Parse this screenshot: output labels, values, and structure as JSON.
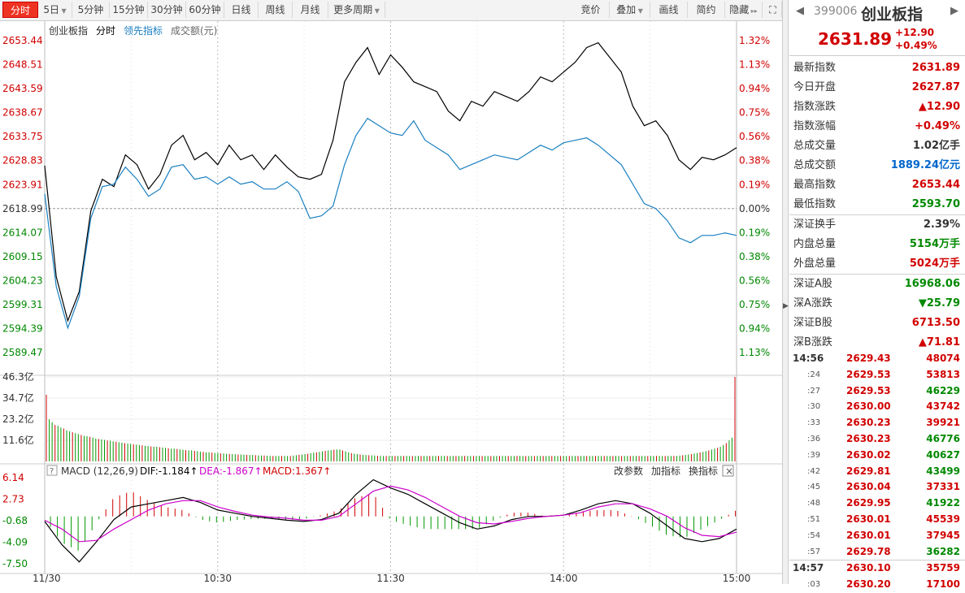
{
  "toolbar": {
    "tabs": [
      {
        "label": "分时",
        "active": true
      },
      {
        "label": "5日",
        "dropdown": true
      },
      {
        "label": "5分钟"
      },
      {
        "label": "15分钟"
      },
      {
        "label": "30分钟"
      },
      {
        "label": "60分钟"
      },
      {
        "label": "日线"
      },
      {
        "label": "周线"
      },
      {
        "label": "月线"
      },
      {
        "label": "更多周期",
        "dropdown": true
      }
    ],
    "right": [
      {
        "label": "竞价"
      },
      {
        "label": "叠加",
        "dropdown": true
      },
      {
        "label": "画线"
      },
      {
        "label": "简约"
      },
      {
        "label": "隐藏",
        "suffix": "▸▸"
      }
    ],
    "fullscreen_icon": "expand-icon"
  },
  "chart_data": {
    "type": "line",
    "title": "创业板指",
    "legend": [
      "创业板指",
      "分时",
      "领先指标",
      "成交额(元)"
    ],
    "legend_colors": [
      "#333333",
      "#000000",
      "#1a7fc0",
      "#666666"
    ],
    "prev_close": 2618.99,
    "price_axis": [
      "2653.44",
      "2648.51",
      "2643.59",
      "2638.67",
      "2633.75",
      "2628.83",
      "2623.91",
      "2618.99",
      "2614.07",
      "2609.15",
      "2604.23",
      "2599.31",
      "2594.39",
      "2589.47"
    ],
    "pct_axis": [
      "1.32%",
      "1.13%",
      "0.94%",
      "0.75%",
      "0.56%",
      "0.38%",
      "0.19%",
      "0.00%",
      "0.19%",
      "0.38%",
      "0.56%",
      "0.75%",
      "0.94%",
      "1.13%"
    ],
    "ylim": [
      2589.47,
      2653.44
    ],
    "time_labels": [
      "11/30",
      "10:30",
      "11:30",
      "14:00",
      "15:00"
    ],
    "series": [
      {
        "name": "分时",
        "color": "#000000",
        "x": [
          0,
          4,
          8,
          12,
          16,
          20,
          24,
          28,
          32,
          36,
          40,
          44,
          48,
          52,
          56,
          60,
          64,
          68,
          72,
          76,
          80,
          84,
          88,
          92,
          96,
          100,
          104,
          108,
          112,
          116,
          120,
          124,
          128,
          132,
          136,
          140,
          144,
          148,
          152,
          156,
          160,
          164,
          168,
          172,
          176,
          180,
          184,
          188,
          192,
          196,
          200,
          204,
          208,
          212,
          216,
          220,
          224,
          228,
          232,
          236,
          240
        ],
        "y": [
          2627.8,
          2605.0,
          2596.0,
          2602.0,
          2618.5,
          2625.0,
          2623.5,
          2630.0,
          2628.0,
          2623.0,
          2626.0,
          2632.0,
          2634.0,
          2629.0,
          2630.5,
          2628.0,
          2632.0,
          2629.0,
          2630.0,
          2627.0,
          2630.0,
          2627.5,
          2625.5,
          2625.0,
          2626.0,
          2633.0,
          2645.0,
          2649.0,
          2652.0,
          2646.5,
          2650.5,
          2648.0,
          2645.0,
          2644.0,
          2643.0,
          2639.0,
          2637.0,
          2641.0,
          2640.0,
          2643.0,
          2642.0,
          2641.0,
          2643.0,
          2646.0,
          2645.0,
          2647.0,
          2649.0,
          2652.0,
          2653.0,
          2650.0,
          2647.0,
          2640.0,
          2636.0,
          2637.0,
          2634.0,
          2629.0,
          2627.0,
          2629.5,
          2629.0,
          2630.0,
          2631.5
        ]
      },
      {
        "name": "领先指标",
        "color": "#1a7fc0",
        "x": [
          0,
          4,
          8,
          12,
          16,
          20,
          24,
          28,
          32,
          36,
          40,
          44,
          48,
          52,
          56,
          60,
          64,
          68,
          72,
          76,
          80,
          84,
          88,
          92,
          96,
          100,
          104,
          108,
          112,
          116,
          120,
          124,
          128,
          132,
          136,
          140,
          144,
          148,
          152,
          156,
          160,
          164,
          168,
          172,
          176,
          180,
          184,
          188,
          192,
          196,
          200,
          204,
          208,
          212,
          216,
          220,
          224,
          228,
          232,
          236,
          240
        ],
        "y": [
          2622.0,
          2603.0,
          2594.5,
          2601.0,
          2617.0,
          2623.5,
          2624.0,
          2627.5,
          2625.0,
          2621.5,
          2623.0,
          2627.5,
          2628.0,
          2625.0,
          2625.5,
          2624.0,
          2625.5,
          2624.0,
          2624.5,
          2623.0,
          2623.0,
          2624.5,
          2622.5,
          2617.0,
          2617.5,
          2619.5,
          2628.0,
          2634.0,
          2637.5,
          2636.0,
          2634.5,
          2634.0,
          2637.0,
          2633.0,
          2631.5,
          2630.0,
          2627.0,
          2628.0,
          2629.0,
          2630.0,
          2629.5,
          2629.0,
          2630.5,
          2632.0,
          2631.0,
          2632.5,
          2633.0,
          2633.5,
          2632.0,
          2630.0,
          2628.0,
          2624.0,
          2620.0,
          2619.0,
          2616.5,
          2613.0,
          2612.0,
          2613.5,
          2613.5,
          2614.0,
          2613.5
        ]
      }
    ],
    "volume": {
      "axis": [
        "46.3亿",
        "34.7亿",
        "23.2亿",
        "11.6亿"
      ],
      "max": 46.3,
      "values": [
        36.5,
        23.0,
        21.5,
        20.0,
        19.5,
        18.5,
        18.0,
        17.0,
        16.5,
        16.0,
        15.5,
        15.0,
        14.5,
        14.0,
        13.8,
        13.5,
        13.0,
        12.5,
        12.3,
        12.0,
        11.8,
        11.5,
        11.3,
        11.0,
        10.8,
        10.5,
        10.3,
        10.0,
        9.8,
        9.6,
        9.4,
        9.2,
        9.0,
        8.8,
        8.6,
        8.4,
        8.2,
        8.0,
        8.0,
        7.8,
        7.6,
        7.4,
        7.2,
        7.0,
        7.0,
        6.8,
        6.6,
        6.4,
        6.2,
        6.0,
        6.0,
        5.8,
        5.6,
        5.4,
        5.2,
        5.0,
        5.0,
        4.8,
        4.6,
        4.5,
        4.4,
        4.3,
        4.2,
        4.1,
        4.0,
        3.9,
        3.8,
        3.8,
        3.7,
        3.6,
        3.5,
        3.5,
        3.4,
        3.3,
        3.2,
        3.2,
        3.1,
        3.0,
        3.0,
        3.0,
        3.0,
        3.0,
        3.0,
        3.0,
        3.0,
        3.2,
        3.4,
        3.6,
        3.8,
        4.0,
        4.2,
        4.5,
        4.8,
        5.0,
        5.2,
        5.5,
        5.8,
        6.0,
        6.2,
        6.4,
        6.5,
        6.5,
        6.0,
        5.5,
        5.0,
        4.5,
        4.2,
        4.0,
        3.8,
        3.6,
        3.5,
        3.4,
        3.3,
        3.2,
        3.1,
        3.0,
        3.0,
        3.0,
        3.0,
        3.0,
        3.0,
        3.0,
        3.0,
        3.0,
        3.0,
        3.0,
        3.0,
        3.0,
        3.0,
        3.0,
        3.0,
        3.0,
        3.0,
        3.0,
        3.0,
        3.0,
        3.0,
        3.0,
        3.0,
        3.0,
        3.0,
        3.0,
        3.0,
        3.0,
        3.0,
        3.0,
        3.0,
        3.0,
        3.0,
        3.0,
        3.0,
        3.0,
        3.0,
        3.0,
        3.0,
        3.0,
        3.0,
        3.0,
        3.0,
        3.0,
        3.0,
        3.0,
        3.0,
        3.0,
        3.0,
        3.0,
        3.0,
        3.0,
        3.0,
        3.0,
        3.0,
        3.0,
        3.0,
        3.0,
        3.0,
        3.0,
        3.0,
        3.0,
        3.0,
        3.0,
        3.0,
        3.0,
        3.0,
        3.0,
        3.0,
        3.0,
        3.0,
        3.0,
        3.0,
        3.0,
        3.0,
        3.0,
        3.0,
        3.0,
        3.0,
        3.0,
        3.0,
        3.0,
        3.0,
        3.0,
        3.0,
        3.0,
        3.0,
        3.0,
        3.0,
        3.0,
        3.0,
        3.0,
        3.0,
        3.0,
        3.0,
        3.0,
        3.0,
        3.0,
        3.0,
        3.0,
        3.0,
        3.0,
        3.2,
        3.4,
        3.6,
        3.8,
        4.0,
        4.3,
        4.6,
        4.9,
        5.2,
        5.6,
        6.0,
        6.5,
        7.0,
        7.5,
        8.0,
        9.0,
        10.0,
        11.5,
        13.0,
        46.3
      ]
    },
    "macd": {
      "header": "MACD (12,26,9)",
      "dif_label": "DIF:-1.184↑",
      "dea_label": "DEA:-1.867↑",
      "macd_label": "MACD:1.367↑",
      "dif_color": "#000000",
      "dea_color": "#cc00cc",
      "axis": [
        "6.14",
        "2.73",
        "-0.68",
        "-4.09",
        "-7.50"
      ],
      "ylim": [
        -7.5,
        6.14
      ],
      "links": [
        "改参数",
        "加指标",
        "换指标"
      ],
      "x": [
        0,
        6,
        12,
        18,
        24,
        30,
        36,
        42,
        48,
        54,
        60,
        66,
        72,
        78,
        84,
        90,
        96,
        102,
        108,
        114,
        120,
        126,
        132,
        138,
        144,
        150,
        156,
        162,
        168,
        174,
        180,
        186,
        192,
        198,
        204,
        210,
        216,
        222,
        228,
        234,
        240
      ],
      "dif": [
        -0.8,
        -4.5,
        -7.2,
        -4.0,
        -0.5,
        1.5,
        2.0,
        2.5,
        3.0,
        2.2,
        1.0,
        0.5,
        0.0,
        -0.3,
        -0.6,
        -0.8,
        -0.5,
        0.5,
        3.5,
        5.8,
        4.5,
        3.5,
        2.0,
        0.5,
        -1.0,
        -2.0,
        -1.5,
        -0.5,
        0.0,
        0.0,
        0.2,
        1.0,
        2.0,
        2.5,
        2.0,
        0.5,
        -1.5,
        -3.5,
        -4.0,
        -3.5,
        -2.0
      ],
      "dea": [
        -0.6,
        -2.0,
        -4.0,
        -3.8,
        -2.0,
        -0.5,
        1.0,
        2.0,
        2.5,
        2.5,
        1.5,
        0.8,
        0.2,
        -0.1,
        -0.3,
        -0.6,
        -0.6,
        0.0,
        2.0,
        4.0,
        4.8,
        4.2,
        3.0,
        1.5,
        0.0,
        -1.0,
        -1.2,
        -0.8,
        -0.3,
        0.0,
        0.2,
        0.6,
        1.5,
        2.0,
        2.0,
        1.2,
        0.0,
        -1.8,
        -3.0,
        -3.2,
        -2.5
      ],
      "bars": [
        -0.4,
        -4.2,
        -5.5,
        -1.0,
        3.0,
        4.0,
        2.5,
        1.5,
        1.0,
        -0.5,
        -1.0,
        -0.6,
        -0.4,
        -0.4,
        -0.6,
        -0.4,
        0.2,
        1.0,
        3.0,
        3.6,
        -0.6,
        -1.4,
        -2.0,
        -2.0,
        -2.0,
        -2.0,
        -0.6,
        0.6,
        0.6,
        0.0,
        0.0,
        0.8,
        1.0,
        1.0,
        0.0,
        -1.4,
        -3.0,
        -3.4,
        -2.0,
        -0.6,
        1.0
      ]
    }
  },
  "sidebar": {
    "code": "399006",
    "name": "创业板指",
    "price": "2631.89",
    "change": "+12.90",
    "change_pct": "+0.49%",
    "stats": [
      {
        "label": "最新指数",
        "value": "2631.89",
        "color": "red"
      },
      {
        "label": "今日开盘",
        "value": "2627.87",
        "color": "red"
      },
      {
        "label": "指数涨跌",
        "value": "▲12.90",
        "color": "red"
      },
      {
        "label": "指数涨幅",
        "value": "+0.49%",
        "color": "red"
      },
      {
        "label": "总成交量",
        "value": "1.02亿手",
        "color": "dark"
      },
      {
        "label": "总成交额",
        "value": "1889.24亿元",
        "color": "blue"
      },
      {
        "label": "最高指数",
        "value": "2653.44",
        "color": "red"
      },
      {
        "label": "最低指数",
        "value": "2593.70",
        "color": "green"
      },
      {
        "label": "深证换手",
        "value": "2.39%",
        "color": "dark",
        "divider": true
      },
      {
        "label": "内盘总量",
        "value": "5154万手",
        "color": "green"
      },
      {
        "label": "外盘总量",
        "value": "5024万手",
        "color": "red"
      },
      {
        "label": "深证A股",
        "value": "16968.06",
        "color": "green",
        "divider": true
      },
      {
        "label": "深A涨跌",
        "value": "▼25.79",
        "color": "green"
      },
      {
        "label": "深证B股",
        "value": "6713.50",
        "color": "red"
      },
      {
        "label": "深B涨跌",
        "value": "▲71.81",
        "color": "red"
      }
    ],
    "ticks": [
      {
        "time": "14:56",
        "full": true,
        "price": "2629.43",
        "pc": "red",
        "vol": "48074",
        "vc": "red"
      },
      {
        "time": ":24",
        "price": "2629.53",
        "pc": "red",
        "vol": "53813",
        "vc": "red"
      },
      {
        "time": ":27",
        "price": "2629.53",
        "pc": "red",
        "vol": "46229",
        "vc": "green"
      },
      {
        "time": ":30",
        "price": "2630.00",
        "pc": "red",
        "vol": "43742",
        "vc": "red"
      },
      {
        "time": ":33",
        "price": "2630.23",
        "pc": "red",
        "vol": "39921",
        "vc": "red"
      },
      {
        "time": ":36",
        "price": "2630.23",
        "pc": "red",
        "vol": "46776",
        "vc": "green"
      },
      {
        "time": ":39",
        "price": "2630.02",
        "pc": "red",
        "vol": "40627",
        "vc": "green"
      },
      {
        "time": ":42",
        "price": "2629.81",
        "pc": "red",
        "vol": "43499",
        "vc": "green"
      },
      {
        "time": ":45",
        "price": "2630.04",
        "pc": "red",
        "vol": "37331",
        "vc": "red"
      },
      {
        "time": ":48",
        "price": "2629.95",
        "pc": "red",
        "vol": "41922",
        "vc": "green"
      },
      {
        "time": ":51",
        "price": "2630.01",
        "pc": "red",
        "vol": "45539",
        "vc": "red"
      },
      {
        "time": ":54",
        "price": "2630.01",
        "pc": "red",
        "vol": "37945",
        "vc": "red"
      },
      {
        "time": ":57",
        "price": "2629.78",
        "pc": "red",
        "vol": "36282",
        "vc": "green"
      },
      {
        "time": "14:57",
        "full": true,
        "divider": true,
        "price": "2630.10",
        "pc": "red",
        "vol": "35759",
        "vc": "red"
      },
      {
        "time": ":03",
        "price": "2630.20",
        "pc": "red",
        "vol": "17100",
        "vc": "red"
      }
    ]
  }
}
